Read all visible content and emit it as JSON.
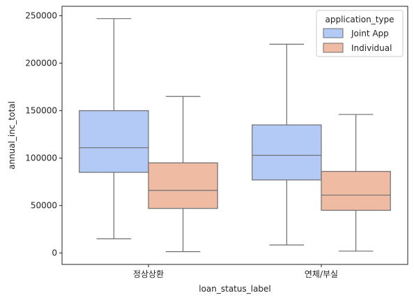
{
  "chart_data": {
    "type": "box",
    "xlabel": "loan_status_label",
    "ylabel": "annual_inc_total",
    "categories": [
      "정상상환",
      "연체/부실"
    ],
    "ylim": [
      -12000,
      260000
    ],
    "yticks": [
      0,
      50000,
      100000,
      150000,
      200000,
      250000
    ],
    "ytick_labels": [
      "0",
      "50000",
      "100000",
      "150000",
      "200000",
      "250000"
    ],
    "grid": false,
    "legend": {
      "title": "application_type",
      "placement": "top-right"
    },
    "series": [
      {
        "name": "Joint App",
        "color": "#b3c9f6",
        "boxes": [
          {
            "category": "정상상환",
            "whisker_low": 15000,
            "q1": 85000,
            "median": 111000,
            "q3": 150000,
            "whisker_high": 247000
          },
          {
            "category": "연체/부실",
            "whisker_low": 8500,
            "q1": 77000,
            "median": 103000,
            "q3": 135000,
            "whisker_high": 220000
          }
        ]
      },
      {
        "name": "Individual",
        "color": "#efbba3",
        "boxes": [
          {
            "category": "정상상환",
            "whisker_low": 1500,
            "q1": 47000,
            "median": 66000,
            "q3": 95000,
            "whisker_high": 165000
          },
          {
            "category": "연체/부실",
            "whisker_low": 2000,
            "q1": 45000,
            "median": 61000,
            "q3": 86000,
            "whisker_high": 146000
          }
        ]
      }
    ]
  }
}
